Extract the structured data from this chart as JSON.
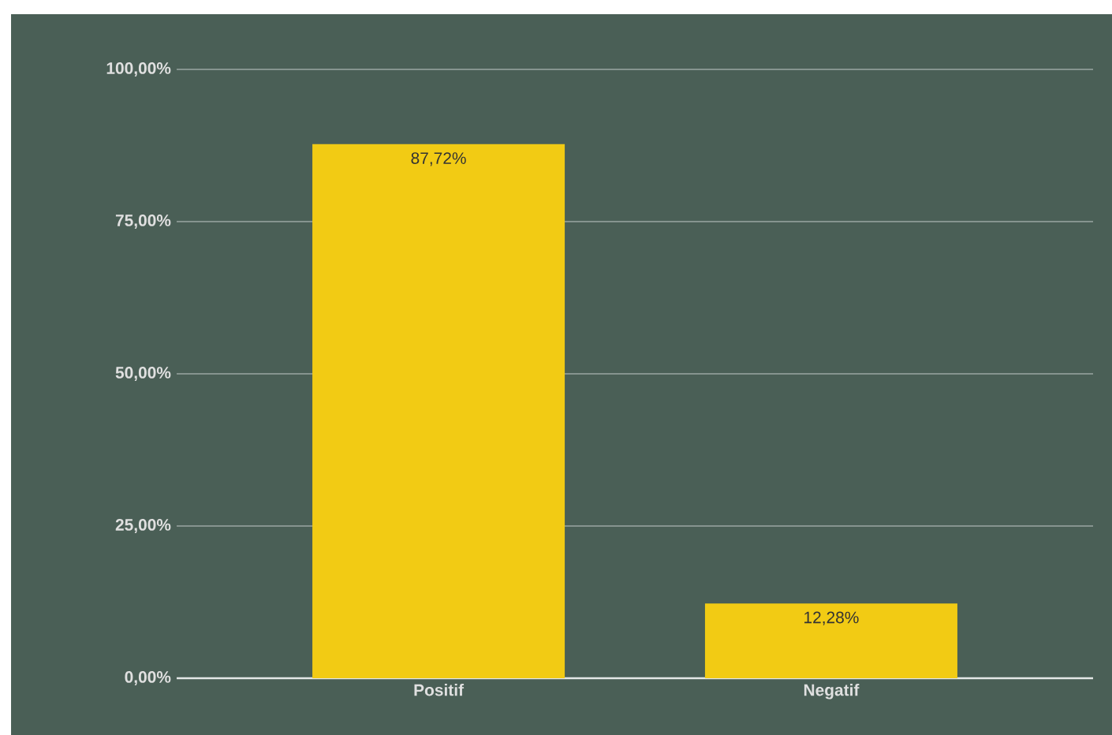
{
  "chart_data": {
    "type": "bar",
    "categories": [
      "Positif",
      "Negatif"
    ],
    "values": [
      87.72,
      12.28
    ],
    "value_labels": [
      "87,72%",
      "12,28%"
    ],
    "color": "#f2cb14",
    "ylim": [
      0,
      100
    ],
    "yticks": [
      {
        "value": 0,
        "label": "0,00%"
      },
      {
        "value": 25,
        "label": "25,00%"
      },
      {
        "value": 50,
        "label": "50,00%"
      },
      {
        "value": 75,
        "label": "75,00%"
      },
      {
        "value": 100,
        "label": "100,00%"
      }
    ],
    "grid": "y"
  }
}
